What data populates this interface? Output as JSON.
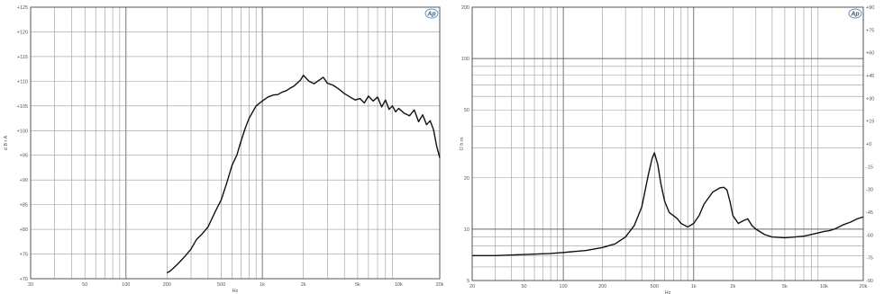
{
  "chart_data": [
    {
      "type": "line",
      "xscale": "log",
      "xlim": [
        20,
        20000
      ],
      "ylim": [
        70,
        125
      ],
      "xticks": [
        20,
        50,
        100,
        200,
        500,
        1000,
        2000,
        5000,
        10000,
        20000
      ],
      "xtick_labels": [
        "20",
        "50",
        "100",
        "200",
        "500",
        "1k",
        "2k",
        "5k",
        "10k",
        "20k"
      ],
      "yticks": [
        70,
        75,
        80,
        85,
        90,
        95,
        100,
        105,
        110,
        115,
        120,
        125
      ],
      "ytick_labels": [
        "+70",
        "+75",
        "+80",
        "+85",
        "+90",
        "+95",
        "+100",
        "+105",
        "+110",
        "+115",
        "+120",
        "+125"
      ],
      "xlabel": "Hz",
      "ylabel": "d B  r  A",
      "grid": true,
      "logo_text": "Ap",
      "colors": {
        "curve": "#111111",
        "grid": "#9a9a9a",
        "logo": "#2b7bc4"
      },
      "series": [
        {
          "x": [
            200,
            210,
            220,
            230,
            240,
            250,
            270,
            300,
            330,
            360,
            400,
            450,
            500,
            550,
            600,
            650,
            700,
            750,
            800,
            900,
            1000,
            1100,
            1200,
            1300,
            1400,
            1500,
            1600,
            1700,
            1800,
            1900,
            2000,
            2200,
            2400,
            2600,
            2800,
            3000,
            3300,
            3600,
            4000,
            4400,
            4800,
            5200,
            5600,
            6000,
            6500,
            7000,
            7500,
            8000,
            8500,
            9000,
            9500,
            10000,
            11000,
            12000,
            13000,
            14000,
            15000,
            16000,
            17000,
            18000,
            19000,
            20000
          ],
          "y": [
            71.2,
            71.5,
            72.0,
            72.5,
            73.0,
            73.5,
            74.5,
            76.0,
            78.0,
            79.0,
            80.5,
            83.5,
            86.0,
            89.5,
            93.0,
            95.0,
            98.0,
            100.5,
            102.5,
            105.0,
            106.0,
            106.8,
            107.2,
            107.3,
            107.8,
            108.1,
            108.6,
            109.0,
            109.6,
            110.2,
            111.2,
            110.0,
            109.5,
            110.2,
            110.8,
            109.6,
            109.2,
            108.5,
            107.5,
            106.8,
            106.2,
            106.5,
            105.6,
            107.0,
            106.0,
            106.8,
            104.8,
            106.2,
            104.3,
            105.0,
            103.8,
            104.5,
            103.5,
            103.0,
            104.2,
            101.8,
            103.2,
            101.2,
            102.0,
            100.2,
            96.8,
            94.5
          ]
        }
      ]
    },
    {
      "type": "line",
      "xscale": "log",
      "yscale": "log",
      "xlim": [
        20,
        20000
      ],
      "ylim": [
        5,
        200
      ],
      "xticks": [
        20,
        50,
        100,
        200,
        500,
        1000,
        2000,
        5000,
        10000,
        20000
      ],
      "xtick_labels": [
        "20",
        "50",
        "100",
        "200",
        "500",
        "1k",
        "2k",
        "5k",
        "10k",
        "20k"
      ],
      "yticks_left": [
        5,
        10,
        20,
        50,
        100,
        200
      ],
      "ytick_labels_left": [
        "5",
        "10",
        "20",
        "50",
        "100",
        "200"
      ],
      "yticks_right_labels": [
        "+90",
        "+75",
        "+60",
        "+45",
        "+30",
        "+15",
        "+0",
        "-15",
        "-30",
        "-45",
        "-60",
        "-75",
        "-90"
      ],
      "xlabel": "Hz",
      "ylabel": "O h m",
      "grid": true,
      "logo_text": "Ap",
      "colors": {
        "curve": "#111111",
        "grid": "#9a9a9a",
        "logo": "#2b7bc4"
      },
      "series": [
        {
          "x": [
            20,
            30,
            50,
            80,
            100,
            150,
            200,
            250,
            300,
            350,
            400,
            450,
            480,
            500,
            530,
            560,
            600,
            650,
            700,
            750,
            800,
            900,
            1000,
            1100,
            1200,
            1400,
            1600,
            1700,
            1800,
            1900,
            2000,
            2200,
            2400,
            2600,
            2800,
            3000,
            3500,
            4000,
            5000,
            6000,
            7000,
            8000,
            9000,
            10000,
            11000,
            12000,
            14000,
            16000,
            18000,
            20000
          ],
          "y": [
            7.0,
            7.0,
            7.1,
            7.2,
            7.3,
            7.5,
            7.8,
            8.2,
            9.0,
            10.5,
            13.5,
            21.0,
            26.0,
            28.0,
            24.0,
            18.5,
            14.5,
            12.5,
            12.0,
            11.5,
            10.8,
            10.3,
            10.8,
            12.0,
            14.0,
            16.5,
            17.5,
            17.6,
            17.0,
            14.5,
            12.0,
            10.8,
            11.2,
            11.5,
            10.5,
            10.0,
            9.3,
            9.0,
            8.9,
            9.0,
            9.1,
            9.3,
            9.5,
            9.7,
            9.8,
            10.0,
            10.6,
            11.0,
            11.5,
            11.8
          ]
        }
      ]
    }
  ]
}
